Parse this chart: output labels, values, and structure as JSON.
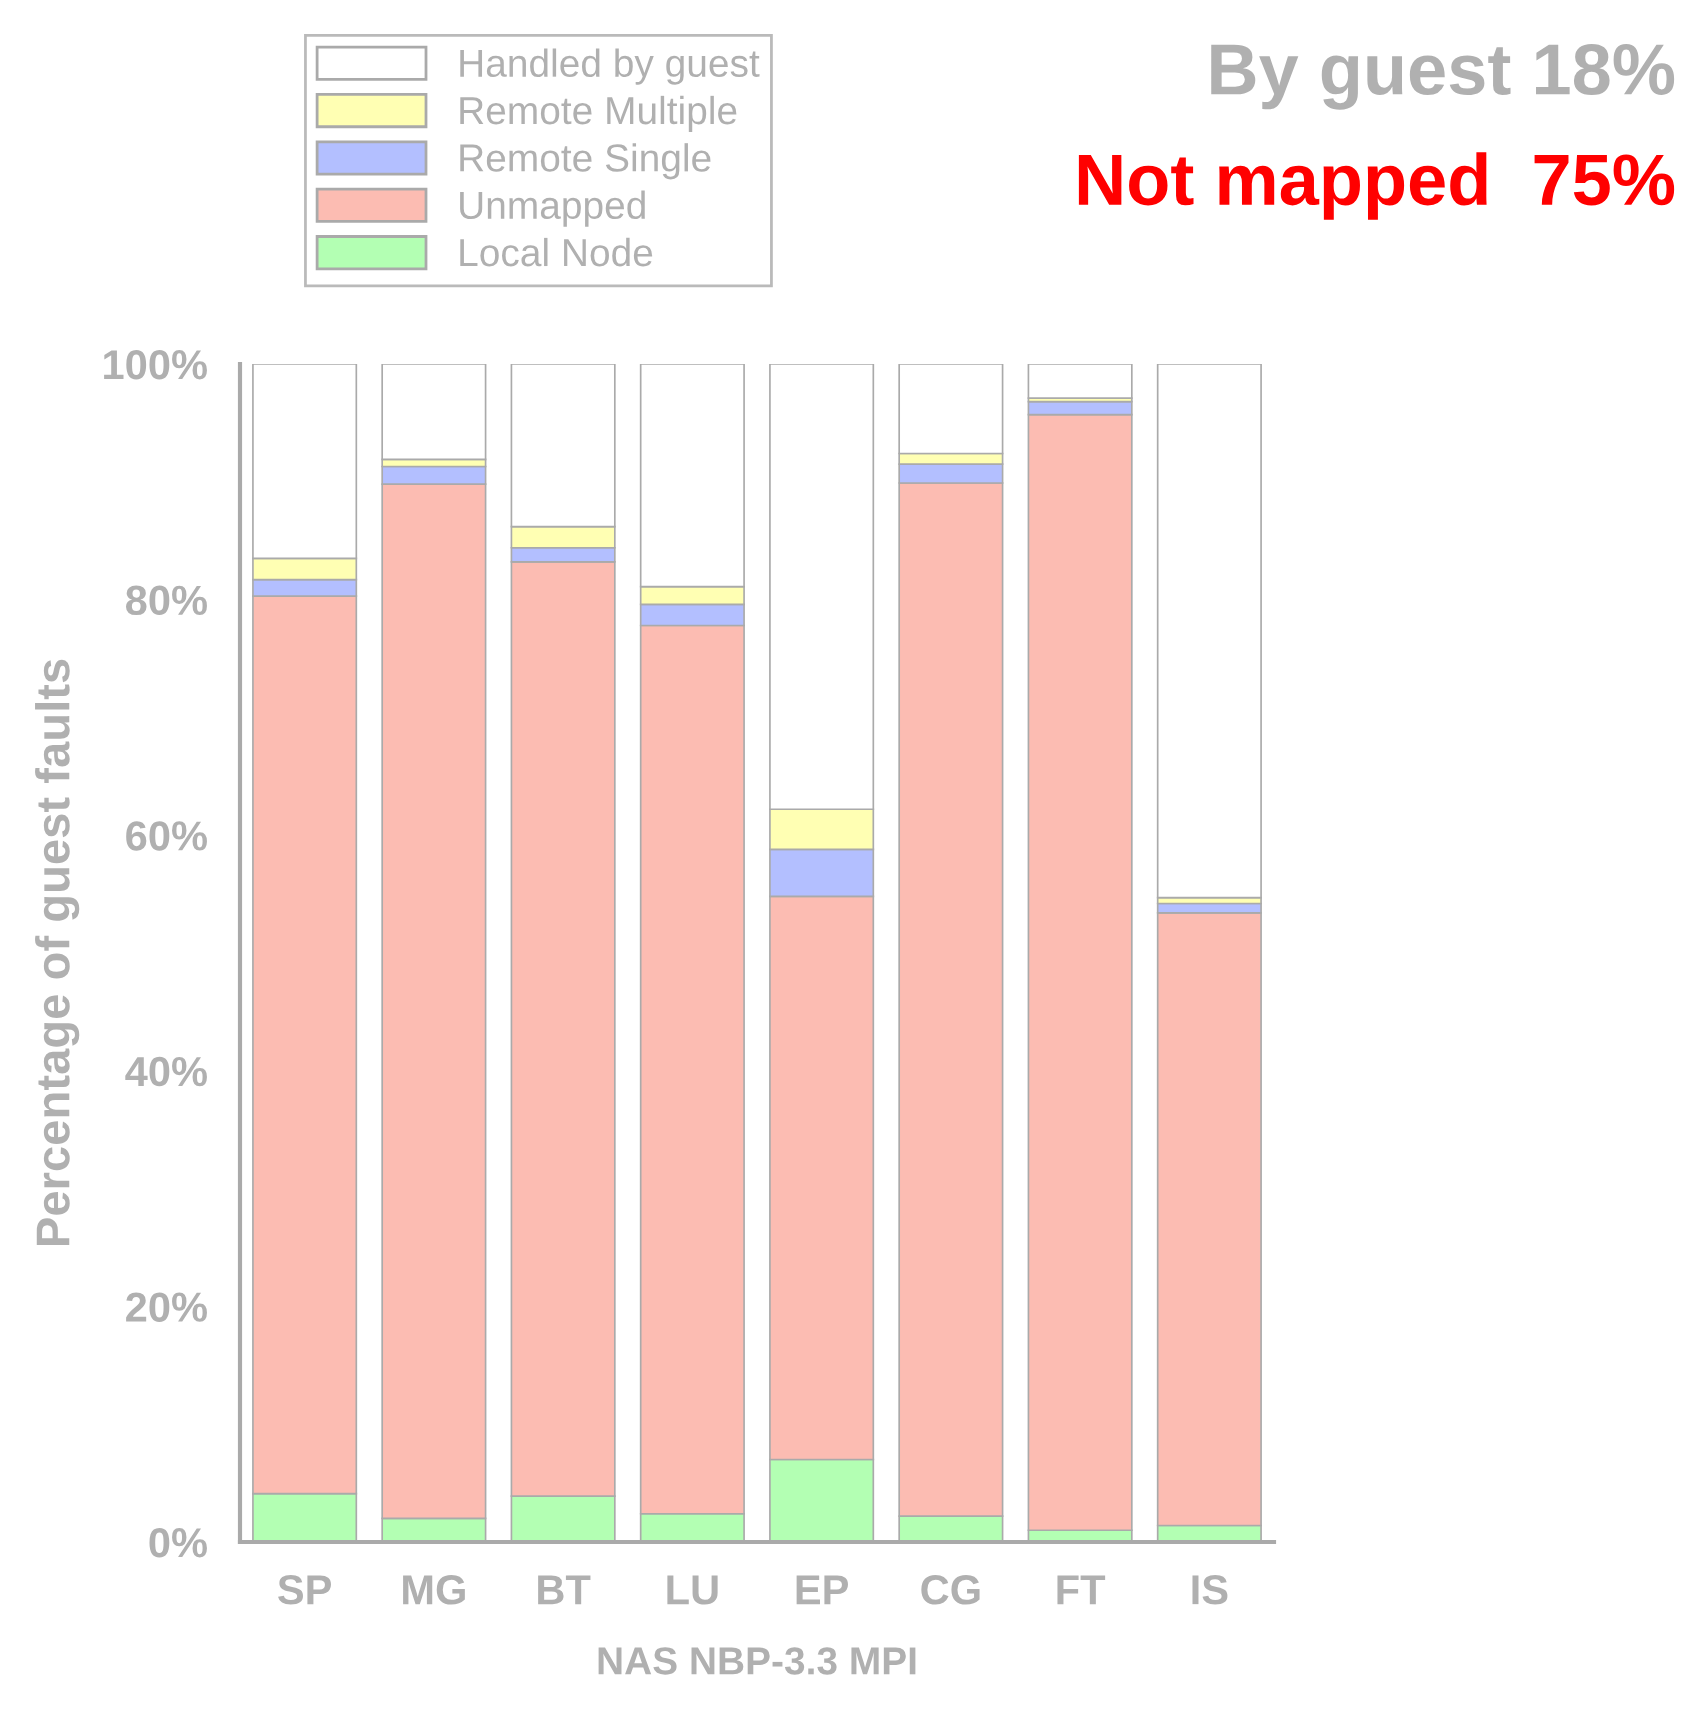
{
  "chart_data": {
    "type": "bar",
    "stacked": true,
    "xlabel": "NAS NBP-3.3 MPI",
    "ylabel": "Percentage of guest faults",
    "annotations": [
      "By guest 18%",
      "Not mapped  75%"
    ],
    "categories": [
      "SP",
      "MG",
      "BT",
      "LU",
      "EP",
      "CG",
      "FT",
      "IS"
    ],
    "series": [
      {
        "name": "Local Node",
        "color": "#b3ffb3",
        "values": [
          4.1,
          2.0,
          3.9,
          2.4,
          7.0,
          2.2,
          1.0,
          1.4
        ]
      },
      {
        "name": "Unmapped",
        "color": "#fcbcb2",
        "values": [
          76.2,
          87.8,
          79.3,
          75.4,
          47.8,
          87.7,
          94.7,
          52.0
        ]
      },
      {
        "name": "Remote Single",
        "color": "#b3bfff",
        "values": [
          1.4,
          1.5,
          1.2,
          1.8,
          4.0,
          1.6,
          1.1,
          0.8
        ]
      },
      {
        "name": "Remote Multiple",
        "color": "#ffffb3",
        "values": [
          1.8,
          0.6,
          1.8,
          1.5,
          3.4,
          0.9,
          0.3,
          0.5
        ]
      },
      {
        "name": "Handled by guest",
        "color": "#ffffff",
        "values": [
          16.5,
          8.1,
          13.8,
          18.9,
          37.8,
          7.6,
          2.9,
          45.3
        ]
      }
    ],
    "ylim": [
      0,
      100
    ],
    "yticks": [
      {
        "value": 0,
        "label": "0%"
      },
      {
        "value": 20,
        "label": "20%"
      },
      {
        "value": 40,
        "label": "40%"
      },
      {
        "value": 60,
        "label": "60%"
      },
      {
        "value": 80,
        "label": "80%"
      },
      {
        "value": 100,
        "label": "100%"
      }
    ],
    "grid": false,
    "legend": "top"
  }
}
